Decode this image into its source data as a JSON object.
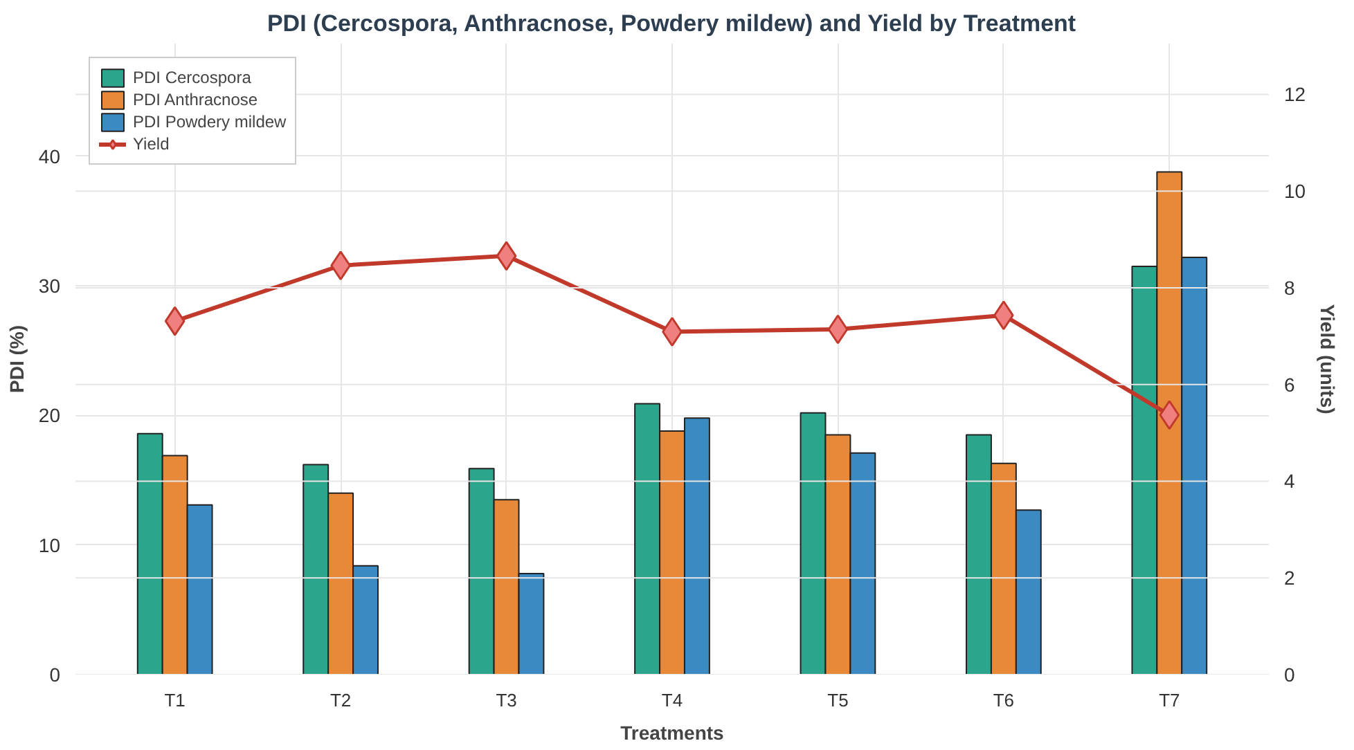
{
  "chart_data": {
    "type": "bar",
    "title": "PDI (Cercospora, Anthracnose, Powdery mildew) and Yield by Treatment",
    "xlabel": "Treatments",
    "ylabel": "PDI (%)",
    "y2label": "Yield (units)",
    "categories": [
      "T1",
      "T2",
      "T3",
      "T4",
      "T5",
      "T6",
      "T7"
    ],
    "series": [
      {
        "name": "PDI Cercospora",
        "color": "#2ca58d",
        "values": [
          18.6,
          16.2,
          15.9,
          20.9,
          20.2,
          18.5,
          31.5
        ]
      },
      {
        "name": "PDI Anthracnose",
        "color": "#e8893a",
        "values": [
          16.9,
          14.0,
          13.5,
          18.8,
          18.5,
          16.3,
          38.8
        ]
      },
      {
        "name": "PDI Powdery mildew",
        "color": "#3b8bc2",
        "values": [
          13.1,
          8.4,
          7.8,
          19.8,
          17.1,
          12.7,
          32.2
        ]
      },
      {
        "name": "Yield",
        "color": "#c0392b",
        "type": "line",
        "axis": "y2",
        "marker": "diamond",
        "values": [
          7.31,
          8.46,
          8.66,
          7.09,
          7.14,
          7.43,
          5.37
        ]
      }
    ],
    "ylim": [
      0,
      48.7
    ],
    "yticks": [
      0,
      10,
      20,
      30,
      40
    ],
    "y2lim": [
      0,
      13.05
    ],
    "y2ticks": [
      0,
      2,
      4,
      6,
      8,
      10,
      12
    ],
    "grid": true,
    "legend": "top left"
  }
}
